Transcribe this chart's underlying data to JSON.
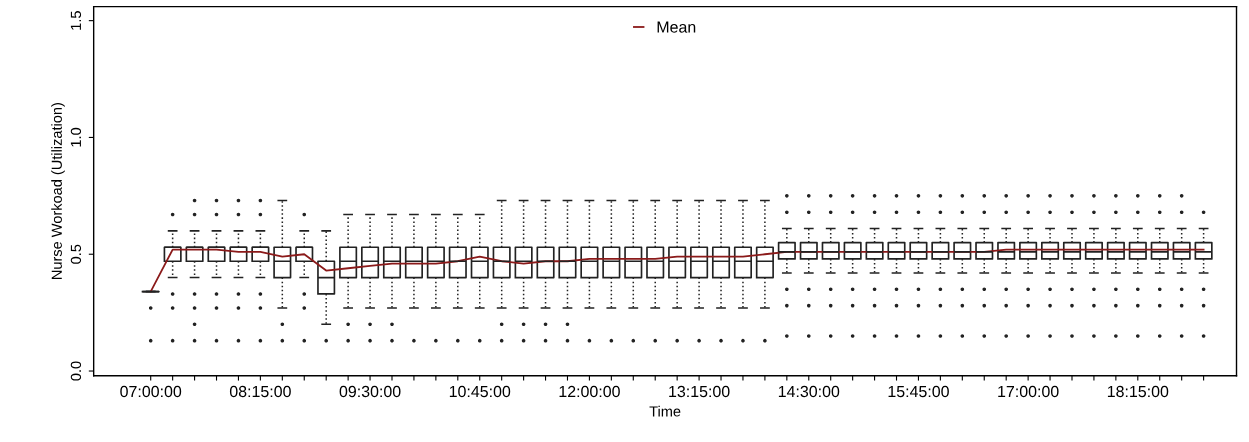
{
  "chart_data": {
    "type": "box",
    "xlabel": "Time",
    "ylabel": "Nurse Workoad (Utilization)",
    "categories": [
      "07:00:00",
      null,
      null,
      null,
      null,
      "08:15:00",
      null,
      null,
      null,
      null,
      "09:30:00",
      null,
      null,
      null,
      null,
      "10:45:00",
      null,
      null,
      null,
      null,
      "12:00:00",
      null,
      null,
      null,
      null,
      "13:15:00",
      null,
      null,
      null,
      null,
      "14:30:00",
      null,
      null,
      null,
      null,
      "15:45:00",
      null,
      null,
      null,
      null,
      "17:00:00",
      null,
      null,
      null,
      null,
      "18:15:00",
      null,
      null,
      null
    ],
    "ylim": [
      -0.02,
      1.56
    ],
    "yticks": [
      {
        "value": 0,
        "label": "0.0"
      },
      0.5,
      {
        "value": 1,
        "label": "1.0"
      },
      1.5
    ],
    "grid": false,
    "legend": "top",
    "boxes": [
      {
        "low": 0.34,
        "q1": 0.34,
        "median": 0.34,
        "q3": 0.34,
        "high": 0.34,
        "outliers": [
          0.27,
          0.13
        ]
      },
      {
        "low": 0.4,
        "q1": 0.47,
        "median": 0.53,
        "q3": 0.53,
        "high": 0.6,
        "outliers": [
          0.67,
          0.33,
          0.27,
          0.13
        ]
      },
      {
        "low": 0.4,
        "q1": 0.47,
        "median": 0.53,
        "q3": 0.53,
        "high": 0.6,
        "outliers": [
          0.73,
          0.67,
          0.33,
          0.27,
          0.2,
          0.13
        ]
      },
      {
        "low": 0.4,
        "q1": 0.47,
        "median": 0.53,
        "q3": 0.53,
        "high": 0.6,
        "outliers": [
          0.73,
          0.67,
          0.33,
          0.27,
          0.13
        ]
      },
      {
        "low": 0.4,
        "q1": 0.47,
        "median": 0.53,
        "q3": 0.53,
        "high": 0.6,
        "outliers": [
          0.73,
          0.67,
          0.33,
          0.27,
          0.13
        ]
      },
      {
        "low": 0.4,
        "q1": 0.47,
        "median": 0.53,
        "q3": 0.53,
        "high": 0.6,
        "outliers": [
          0.73,
          0.67,
          0.33,
          0.27,
          0.13
        ]
      },
      {
        "low": 0.27,
        "q1": 0.4,
        "median": 0.47,
        "q3": 0.53,
        "high": 0.73,
        "outliers": [
          0.2,
          0.13
        ]
      },
      {
        "low": 0.4,
        "q1": 0.47,
        "median": 0.53,
        "q3": 0.53,
        "high": 0.6,
        "outliers": [
          0.67,
          0.33,
          0.27,
          0.13
        ]
      },
      {
        "low": 0.2,
        "q1": 0.33,
        "median": 0.4,
        "q3": 0.47,
        "high": 0.6,
        "outliers": [
          0.13
        ]
      },
      {
        "low": 0.27,
        "q1": 0.4,
        "median": 0.47,
        "q3": 0.53,
        "high": 0.67,
        "outliers": [
          0.2,
          0.13
        ]
      },
      {
        "low": 0.27,
        "q1": 0.4,
        "median": 0.47,
        "q3": 0.53,
        "high": 0.67,
        "outliers": [
          0.2,
          0.13
        ]
      },
      {
        "low": 0.27,
        "q1": 0.4,
        "median": 0.47,
        "q3": 0.53,
        "high": 0.67,
        "outliers": [
          0.2,
          0.13
        ]
      },
      {
        "low": 0.27,
        "q1": 0.4,
        "median": 0.47,
        "q3": 0.53,
        "high": 0.67,
        "outliers": [
          0.13
        ]
      },
      {
        "low": 0.27,
        "q1": 0.4,
        "median": 0.47,
        "q3": 0.53,
        "high": 0.67,
        "outliers": [
          0.13
        ]
      },
      {
        "low": 0.27,
        "q1": 0.4,
        "median": 0.47,
        "q3": 0.53,
        "high": 0.67,
        "outliers": [
          0.13
        ]
      },
      {
        "low": 0.27,
        "q1": 0.4,
        "median": 0.47,
        "q3": 0.53,
        "high": 0.67,
        "outliers": [
          0.13
        ]
      },
      {
        "low": 0.27,
        "q1": 0.4,
        "median": 0.47,
        "q3": 0.53,
        "high": 0.73,
        "outliers": [
          0.2,
          0.13
        ]
      },
      {
        "low": 0.27,
        "q1": 0.4,
        "median": 0.47,
        "q3": 0.53,
        "high": 0.73,
        "outliers": [
          0.2,
          0.13
        ]
      },
      {
        "low": 0.27,
        "q1": 0.4,
        "median": 0.47,
        "q3": 0.53,
        "high": 0.73,
        "outliers": [
          0.2,
          0.13
        ]
      },
      {
        "low": 0.27,
        "q1": 0.4,
        "median": 0.47,
        "q3": 0.53,
        "high": 0.73,
        "outliers": [
          0.2,
          0.13
        ]
      },
      {
        "low": 0.27,
        "q1": 0.4,
        "median": 0.47,
        "q3": 0.53,
        "high": 0.73,
        "outliers": [
          0.13
        ]
      },
      {
        "low": 0.27,
        "q1": 0.4,
        "median": 0.47,
        "q3": 0.53,
        "high": 0.73,
        "outliers": [
          0.13
        ]
      },
      {
        "low": 0.27,
        "q1": 0.4,
        "median": 0.47,
        "q3": 0.53,
        "high": 0.73,
        "outliers": [
          0.13
        ]
      },
      {
        "low": 0.27,
        "q1": 0.4,
        "median": 0.47,
        "q3": 0.53,
        "high": 0.73,
        "outliers": [
          0.13
        ]
      },
      {
        "low": 0.27,
        "q1": 0.4,
        "median": 0.47,
        "q3": 0.53,
        "high": 0.73,
        "outliers": [
          0.13
        ]
      },
      {
        "low": 0.27,
        "q1": 0.4,
        "median": 0.47,
        "q3": 0.53,
        "high": 0.73,
        "outliers": [
          0.13
        ]
      },
      {
        "low": 0.27,
        "q1": 0.4,
        "median": 0.47,
        "q3": 0.53,
        "high": 0.73,
        "outliers": [
          0.13
        ]
      },
      {
        "low": 0.27,
        "q1": 0.4,
        "median": 0.47,
        "q3": 0.53,
        "high": 0.73,
        "outliers": [
          0.13
        ]
      },
      {
        "low": 0.27,
        "q1": 0.4,
        "median": 0.47,
        "q3": 0.53,
        "high": 0.73,
        "outliers": [
          0.13
        ]
      },
      {
        "low": 0.42,
        "q1": 0.48,
        "median": 0.51,
        "q3": 0.55,
        "high": 0.61,
        "outliers": [
          0.75,
          0.68,
          0.35,
          0.28,
          0.15
        ]
      },
      {
        "low": 0.42,
        "q1": 0.48,
        "median": 0.51,
        "q3": 0.55,
        "high": 0.61,
        "outliers": [
          0.75,
          0.68,
          0.35,
          0.28,
          0.15
        ]
      },
      {
        "low": 0.42,
        "q1": 0.48,
        "median": 0.51,
        "q3": 0.55,
        "high": 0.61,
        "outliers": [
          0.75,
          0.68,
          0.35,
          0.28,
          0.15
        ]
      },
      {
        "low": 0.42,
        "q1": 0.48,
        "median": 0.51,
        "q3": 0.55,
        "high": 0.61,
        "outliers": [
          0.75,
          0.68,
          0.35,
          0.28,
          0.15
        ]
      },
      {
        "low": 0.42,
        "q1": 0.48,
        "median": 0.51,
        "q3": 0.55,
        "high": 0.61,
        "outliers": [
          0.75,
          0.68,
          0.35,
          0.28,
          0.15
        ]
      },
      {
        "low": 0.42,
        "q1": 0.48,
        "median": 0.51,
        "q3": 0.55,
        "high": 0.61,
        "outliers": [
          0.75,
          0.68,
          0.35,
          0.28,
          0.15
        ]
      },
      {
        "low": 0.42,
        "q1": 0.48,
        "median": 0.51,
        "q3": 0.55,
        "high": 0.61,
        "outliers": [
          0.75,
          0.68,
          0.35,
          0.28,
          0.15
        ]
      },
      {
        "low": 0.42,
        "q1": 0.48,
        "median": 0.51,
        "q3": 0.55,
        "high": 0.61,
        "outliers": [
          0.75,
          0.68,
          0.35,
          0.28,
          0.15
        ]
      },
      {
        "low": 0.42,
        "q1": 0.48,
        "median": 0.51,
        "q3": 0.55,
        "high": 0.61,
        "outliers": [
          0.75,
          0.68,
          0.35,
          0.28,
          0.15
        ]
      },
      {
        "low": 0.42,
        "q1": 0.48,
        "median": 0.51,
        "q3": 0.55,
        "high": 0.61,
        "outliers": [
          0.75,
          0.68,
          0.35,
          0.28,
          0.15
        ]
      },
      {
        "low": 0.42,
        "q1": 0.48,
        "median": 0.51,
        "q3": 0.55,
        "high": 0.61,
        "outliers": [
          0.75,
          0.68,
          0.35,
          0.28,
          0.15
        ]
      },
      {
        "low": 0.42,
        "q1": 0.48,
        "median": 0.51,
        "q3": 0.55,
        "high": 0.61,
        "outliers": [
          0.75,
          0.68,
          0.35,
          0.28,
          0.15
        ]
      },
      {
        "low": 0.42,
        "q1": 0.48,
        "median": 0.51,
        "q3": 0.55,
        "high": 0.61,
        "outliers": [
          0.75,
          0.68,
          0.35,
          0.28,
          0.15
        ]
      },
      {
        "low": 0.42,
        "q1": 0.48,
        "median": 0.51,
        "q3": 0.55,
        "high": 0.61,
        "outliers": [
          0.75,
          0.68,
          0.35,
          0.28,
          0.15
        ]
      },
      {
        "low": 0.42,
        "q1": 0.48,
        "median": 0.51,
        "q3": 0.55,
        "high": 0.61,
        "outliers": [
          0.75,
          0.68,
          0.35,
          0.28,
          0.15
        ]
      },
      {
        "low": 0.42,
        "q1": 0.48,
        "median": 0.51,
        "q3": 0.55,
        "high": 0.61,
        "outliers": [
          0.75,
          0.68,
          0.35,
          0.28,
          0.15
        ]
      },
      {
        "low": 0.42,
        "q1": 0.48,
        "median": 0.51,
        "q3": 0.55,
        "high": 0.61,
        "outliers": [
          0.75,
          0.68,
          0.35,
          0.28,
          0.15
        ]
      },
      {
        "low": 0.42,
        "q1": 0.48,
        "median": 0.51,
        "q3": 0.55,
        "high": 0.61,
        "outliers": [
          0.75,
          0.68,
          0.35,
          0.28,
          0.15
        ]
      },
      {
        "low": 0.42,
        "q1": 0.48,
        "median": 0.51,
        "q3": 0.55,
        "high": 0.61,
        "outliers": [
          0.75,
          0.68,
          0.35,
          0.28,
          0.15
        ]
      },
      {
        "low": 0.42,
        "q1": 0.48,
        "median": 0.51,
        "q3": 0.55,
        "high": 0.61,
        "outliers": [
          0.68,
          0.35,
          0.28,
          0.15
        ]
      }
    ],
    "series": [
      {
        "name": "Mean",
        "type": "line",
        "color": "#8b1a1a",
        "values": [
          0.34,
          0.52,
          0.52,
          0.52,
          0.51,
          0.51,
          0.49,
          0.5,
          0.43,
          0.44,
          0.45,
          0.46,
          0.46,
          0.46,
          0.47,
          0.49,
          0.47,
          0.46,
          0.47,
          0.47,
          0.48,
          0.48,
          0.48,
          0.48,
          0.49,
          0.49,
          0.49,
          0.49,
          0.5,
          0.51,
          0.51,
          0.51,
          0.51,
          0.51,
          0.51,
          0.51,
          0.51,
          0.51,
          0.51,
          0.52,
          0.52,
          0.52,
          0.52,
          0.52,
          0.52,
          0.52,
          0.52,
          0.52,
          0.52
        ]
      }
    ]
  }
}
